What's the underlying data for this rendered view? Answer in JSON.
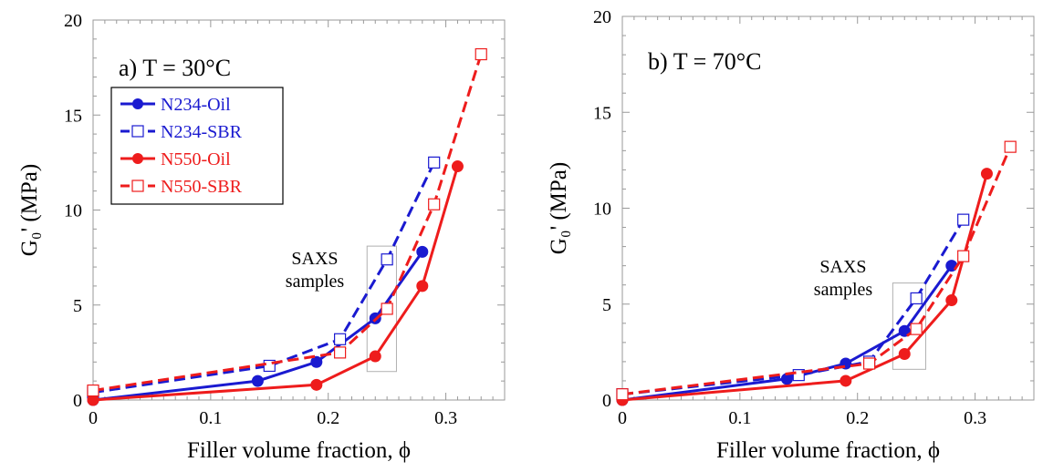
{
  "chart_data": [
    {
      "type": "line",
      "title": "a) T = 30°C",
      "xlabel": "Filler volume fraction, ϕ",
      "ylabel": "G₀' (MPa)",
      "xlim": [
        0,
        0.35
      ],
      "ylim": [
        0,
        20
      ],
      "xticks": [
        "0",
        "0.1",
        "0.2",
        "0.3"
      ],
      "yticks": [
        "0",
        "5",
        "10",
        "15",
        "20"
      ],
      "grid": false,
      "legend": {
        "placement": "upper-left"
      },
      "annotation": {
        "lines": [
          "SAXS",
          "samples"
        ],
        "box_x": [
          0.233,
          0.258
        ],
        "box_y": [
          1.5,
          8.1
        ]
      },
      "series": [
        {
          "name": "N234-Oil",
          "color": "#1a1ad0",
          "style": "solid",
          "marker": "filled-circle",
          "x": [
            0,
            0.14,
            0.19,
            0.24,
            0.28
          ],
          "y": [
            0,
            1.0,
            2.0,
            4.3,
            7.8
          ]
        },
        {
          "name": "N234-SBR",
          "color": "#1a1ad0",
          "style": "dashed",
          "marker": "open-square",
          "x": [
            0,
            0.15,
            0.21,
            0.25,
            0.29
          ],
          "y": [
            0.4,
            1.8,
            3.2,
            7.4,
            12.5
          ]
        },
        {
          "name": "N550-Oil",
          "color": "#ee1c1c",
          "style": "solid",
          "marker": "filled-circle",
          "x": [
            0,
            0.19,
            0.24,
            0.28,
            0.31
          ],
          "y": [
            0,
            0.8,
            2.3,
            6.0,
            12.3
          ]
        },
        {
          "name": "N550-SBR",
          "color": "#ee1c1c",
          "style": "dashed",
          "marker": "open-square",
          "x": [
            0,
            0.21,
            0.25,
            0.29,
            0.33
          ],
          "y": [
            0.5,
            2.5,
            4.8,
            10.3,
            18.2
          ]
        }
      ]
    },
    {
      "type": "line",
      "title": "b) T = 70°C",
      "xlabel": "Filler volume fraction, ϕ",
      "ylabel": "G₀' (MPa)",
      "xlim": [
        0,
        0.35
      ],
      "ylim": [
        0,
        20
      ],
      "xticks": [
        "0",
        "0.1",
        "0.2",
        "0.3"
      ],
      "yticks": [
        "0",
        "5",
        "10",
        "15",
        "20"
      ],
      "grid": false,
      "annotation": {
        "lines": [
          "SAXS",
          "samples"
        ],
        "box_x": [
          0.23,
          0.258
        ],
        "box_y": [
          1.6,
          6.1
        ]
      },
      "series": [
        {
          "name": "N234-Oil",
          "color": "#1a1ad0",
          "style": "solid",
          "marker": "filled-circle",
          "x": [
            0,
            0.14,
            0.19,
            0.24,
            0.28
          ],
          "y": [
            0,
            1.1,
            1.9,
            3.6,
            7.0
          ]
        },
        {
          "name": "N234-SBR",
          "color": "#1a1ad0",
          "style": "dashed",
          "marker": "open-square",
          "x": [
            0,
            0.15,
            0.21,
            0.25,
            0.29
          ],
          "y": [
            0.3,
            1.3,
            2.0,
            5.3,
            9.4
          ]
        },
        {
          "name": "N550-Oil",
          "color": "#ee1c1c",
          "style": "solid",
          "marker": "filled-circle",
          "x": [
            0,
            0.19,
            0.24,
            0.28,
            0.31
          ],
          "y": [
            0,
            1.0,
            2.4,
            5.2,
            11.8
          ]
        },
        {
          "name": "N550-SBR",
          "color": "#ee1c1c",
          "style": "dashed",
          "marker": "open-square",
          "x": [
            0,
            0.21,
            0.25,
            0.29,
            0.33
          ],
          "y": [
            0.3,
            1.9,
            3.7,
            7.5,
            13.2
          ]
        }
      ]
    }
  ]
}
